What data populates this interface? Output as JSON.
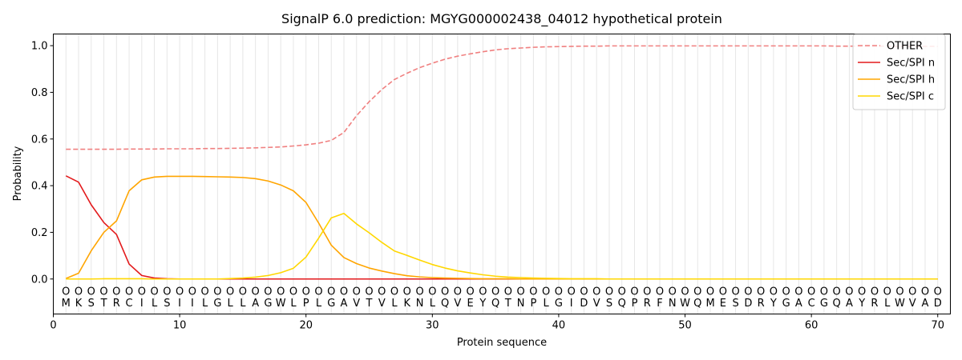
{
  "chart_data": {
    "type": "line",
    "title": "SignalP 6.0 prediction: MGYG000002438_04012 hypothetical protein",
    "xlabel": "Protein sequence",
    "ylabel": "Probability",
    "xlim": [
      0,
      71
    ],
    "ylim": [
      -0.15,
      1.05
    ],
    "x_ticks": [
      "0",
      "10",
      "20",
      "30",
      "40",
      "50",
      "60",
      "70"
    ],
    "y_ticks": [
      "0.0",
      "0.2",
      "0.4",
      "0.6",
      "0.8",
      "1.0"
    ],
    "grid": "vertical lines at each residue position",
    "legend_position": "top-right",
    "sequence": [
      "M",
      "K",
      "S",
      "T",
      "R",
      "C",
      "I",
      "L",
      "S",
      "I",
      "I",
      "L",
      "G",
      "L",
      "L",
      "A",
      "G",
      "W",
      "L",
      "P",
      "L",
      "G",
      "A",
      "V",
      "T",
      "V",
      "L",
      "K",
      "N",
      "L",
      "Q",
      "V",
      "E",
      "Y",
      "Q",
      "T",
      "N",
      "P",
      "L",
      "G",
      "I",
      "D",
      "V",
      "S",
      "Q",
      "P",
      "R",
      "F",
      "N",
      "W",
      "Q",
      "M",
      "E",
      "S",
      "D",
      "R",
      "Y",
      "G",
      "A",
      "C",
      "G",
      "Q",
      "A",
      "Y",
      "R",
      "L",
      "W",
      "V",
      "A",
      "D"
    ],
    "region_labels": [
      "O",
      "O",
      "O",
      "O",
      "O",
      "O",
      "O",
      "O",
      "O",
      "O",
      "O",
      "O",
      "O",
      "O",
      "O",
      "O",
      "O",
      "O",
      "O",
      "O",
      "O",
      "O",
      "O",
      "O",
      "O",
      "O",
      "O",
      "O",
      "O",
      "O",
      "O",
      "O",
      "O",
      "O",
      "O",
      "O",
      "O",
      "O",
      "O",
      "O",
      "O",
      "O",
      "O",
      "O",
      "O",
      "O",
      "O",
      "O",
      "O",
      "O",
      "O",
      "O",
      "O",
      "O",
      "O",
      "O",
      "O",
      "O",
      "O",
      "O",
      "O",
      "O",
      "O",
      "O",
      "O",
      "O",
      "O",
      "O",
      "O",
      "O"
    ],
    "series": [
      {
        "name": "OTHER",
        "color": "#f08080",
        "dash": true,
        "values": [
          0.556,
          0.556,
          0.556,
          0.556,
          0.556,
          0.557,
          0.557,
          0.557,
          0.558,
          0.558,
          0.558,
          0.559,
          0.559,
          0.56,
          0.561,
          0.562,
          0.564,
          0.566,
          0.57,
          0.575,
          0.582,
          0.594,
          0.628,
          0.7,
          0.76,
          0.812,
          0.855,
          0.882,
          0.906,
          0.925,
          0.942,
          0.955,
          0.965,
          0.974,
          0.982,
          0.987,
          0.99,
          0.993,
          0.995,
          0.996,
          0.997,
          0.998,
          0.998,
          0.999,
          0.999,
          0.999,
          0.999,
          0.999,
          0.999,
          0.999,
          0.999,
          0.999,
          0.999,
          0.999,
          0.999,
          0.999,
          0.999,
          0.999,
          0.999,
          0.999,
          0.999,
          0.998,
          0.998,
          0.998,
          0.998,
          0.998,
          0.997,
          0.997,
          0.997,
          0.997
        ]
      },
      {
        "name": "Sec/SPI n",
        "color": "#e31a1c",
        "dash": false,
        "values": [
          0.442,
          0.415,
          0.318,
          0.242,
          0.191,
          0.064,
          0.015,
          0.004,
          0.001,
          0,
          0,
          0,
          0,
          0,
          0,
          0,
          0,
          0,
          0,
          0,
          0,
          0,
          0,
          0,
          0,
          0,
          0,
          0,
          0,
          0,
          0,
          0,
          0,
          0,
          0,
          0,
          0,
          0,
          0,
          0,
          0,
          0,
          0,
          0,
          0,
          0,
          0,
          0,
          0,
          0,
          0,
          0,
          0,
          0,
          0,
          0,
          0,
          0,
          0,
          0,
          0,
          0,
          0,
          0,
          0,
          0,
          0,
          0,
          0,
          0
        ]
      },
      {
        "name": "Sec/SPI h",
        "color": "#ffa500",
        "dash": false,
        "values": [
          0.002,
          0.025,
          0.121,
          0.2,
          0.249,
          0.378,
          0.425,
          0.437,
          0.44,
          0.44,
          0.44,
          0.439,
          0.438,
          0.437,
          0.435,
          0.43,
          0.42,
          0.403,
          0.378,
          0.328,
          0.24,
          0.145,
          0.092,
          0.066,
          0.047,
          0.034,
          0.023,
          0.014,
          0.009,
          0.006,
          0.004,
          0.003,
          0.002,
          0.001,
          0.001,
          0.001,
          0,
          0,
          0,
          0,
          0,
          0,
          0,
          0,
          0,
          0,
          0,
          0,
          0,
          0,
          0,
          0,
          0,
          0,
          0,
          0,
          0,
          0,
          0,
          0,
          0,
          0,
          0,
          0,
          0,
          0,
          0,
          0,
          0,
          0
        ]
      },
      {
        "name": "Sec/SPI c",
        "color": "#ffd700",
        "dash": false,
        "values": [
          0,
          0,
          0,
          0.001,
          0.001,
          0.001,
          0.001,
          0,
          0,
          0,
          0,
          0,
          0,
          0.002,
          0.004,
          0.008,
          0.015,
          0.027,
          0.046,
          0.094,
          0.175,
          0.262,
          0.281,
          0.236,
          0.198,
          0.157,
          0.12,
          0.101,
          0.081,
          0.062,
          0.047,
          0.035,
          0.026,
          0.018,
          0.012,
          0.008,
          0.006,
          0.004,
          0.003,
          0.002,
          0.001,
          0.001,
          0.001,
          0,
          0,
          0,
          0,
          0,
          0,
          0,
          0,
          0,
          0,
          0,
          0,
          0,
          0,
          0,
          0,
          0,
          0,
          0,
          0,
          0,
          0,
          0,
          0,
          0,
          0,
          0
        ]
      }
    ]
  }
}
